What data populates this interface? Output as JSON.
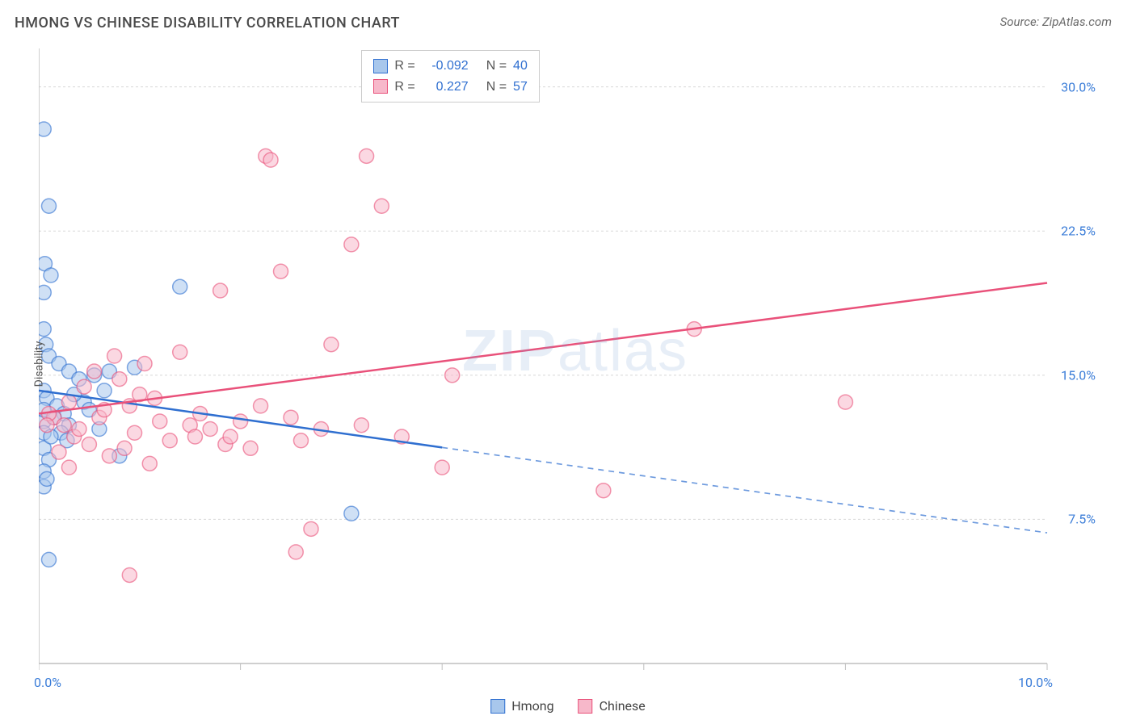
{
  "header": {
    "title": "HMONG VS CHINESE DISABILITY CORRELATION CHART",
    "source": "Source: ZipAtlas.com"
  },
  "watermark": {
    "bold": "ZIP",
    "rest": "atlas"
  },
  "chart": {
    "type": "scatter",
    "ylabel": "Disability",
    "background_color": "#ffffff",
    "grid_color": "#d8d8d8",
    "axis_color": "#bfbfbf",
    "xlim": [
      0,
      10
    ],
    "ylim": [
      0,
      32
    ],
    "x_edge_labels": {
      "min": "0.0%",
      "max": "10.0%"
    },
    "x_ticks": [
      0,
      2,
      4,
      6,
      8,
      10
    ],
    "y_ticks": [
      {
        "v": 7.5,
        "label": "7.5%"
      },
      {
        "v": 15.0,
        "label": "15.0%"
      },
      {
        "v": 22.5,
        "label": "22.5%"
      },
      {
        "v": 30.0,
        "label": "30.0%"
      }
    ],
    "marker_radius": 9,
    "marker_opacity": 0.55,
    "marker_stroke_width": 1.5,
    "line_width": 2.5,
    "series": [
      {
        "key": "hmong",
        "label": "Hmong",
        "color": "#2f6fd0",
        "fill": "#a8c7ec",
        "R": "-0.092",
        "N": "40",
        "trend": {
          "y_at_x0": 14.2,
          "y_at_x10": 6.8,
          "solid_until_x": 4.0
        },
        "points": [
          [
            0.05,
            27.8
          ],
          [
            0.1,
            23.8
          ],
          [
            0.06,
            20.8
          ],
          [
            0.12,
            20.2
          ],
          [
            0.05,
            19.3
          ],
          [
            0.05,
            17.4
          ],
          [
            0.07,
            16.6
          ],
          [
            0.1,
            16.0
          ],
          [
            0.2,
            15.6
          ],
          [
            0.3,
            15.2
          ],
          [
            0.05,
            14.2
          ],
          [
            0.08,
            13.8
          ],
          [
            0.18,
            13.4
          ],
          [
            0.25,
            13.0
          ],
          [
            0.05,
            12.6
          ],
          [
            0.4,
            14.8
          ],
          [
            0.55,
            15.0
          ],
          [
            0.65,
            14.2
          ],
          [
            0.7,
            15.2
          ],
          [
            0.05,
            12.0
          ],
          [
            0.05,
            11.2
          ],
          [
            0.1,
            10.6
          ],
          [
            0.15,
            12.8
          ],
          [
            0.3,
            12.4
          ],
          [
            0.05,
            10.0
          ],
          [
            0.6,
            12.2
          ],
          [
            0.05,
            9.2
          ],
          [
            0.1,
            5.4
          ],
          [
            0.05,
            13.2
          ],
          [
            0.45,
            13.6
          ],
          [
            0.8,
            10.8
          ],
          [
            0.95,
            15.4
          ],
          [
            1.4,
            19.6
          ],
          [
            0.35,
            14.0
          ],
          [
            0.22,
            12.0
          ],
          [
            0.5,
            13.2
          ],
          [
            0.28,
            11.6
          ],
          [
            0.12,
            11.8
          ],
          [
            0.08,
            9.6
          ],
          [
            3.1,
            7.8
          ]
        ]
      },
      {
        "key": "chinese",
        "label": "Chinese",
        "color": "#e9517a",
        "fill": "#f7b8ca",
        "R": "0.227",
        "N": "57",
        "trend": {
          "y_at_x0": 13.0,
          "y_at_x10": 19.8,
          "solid_until_x": 10.0
        },
        "points": [
          [
            0.15,
            12.8
          ],
          [
            0.25,
            12.4
          ],
          [
            0.3,
            13.6
          ],
          [
            0.35,
            11.8
          ],
          [
            0.4,
            12.2
          ],
          [
            0.45,
            14.4
          ],
          [
            0.5,
            11.4
          ],
          [
            0.55,
            15.2
          ],
          [
            0.6,
            12.8
          ],
          [
            0.65,
            13.2
          ],
          [
            0.7,
            10.8
          ],
          [
            0.75,
            16.0
          ],
          [
            0.8,
            14.8
          ],
          [
            0.85,
            11.2
          ],
          [
            0.9,
            13.4
          ],
          [
            0.95,
            12.0
          ],
          [
            1.0,
            14.0
          ],
          [
            1.05,
            15.6
          ],
          [
            1.1,
            10.4
          ],
          [
            1.15,
            13.8
          ],
          [
            1.2,
            12.6
          ],
          [
            1.3,
            11.6
          ],
          [
            1.4,
            16.2
          ],
          [
            1.5,
            12.4
          ],
          [
            1.55,
            11.8
          ],
          [
            1.6,
            13.0
          ],
          [
            1.7,
            12.2
          ],
          [
            1.8,
            19.4
          ],
          [
            1.85,
            11.4
          ],
          [
            1.9,
            11.8
          ],
          [
            2.0,
            12.6
          ],
          [
            2.1,
            11.2
          ],
          [
            2.2,
            13.4
          ],
          [
            2.25,
            26.4
          ],
          [
            2.3,
            26.2
          ],
          [
            2.4,
            20.4
          ],
          [
            2.5,
            12.8
          ],
          [
            2.55,
            5.8
          ],
          [
            2.6,
            11.6
          ],
          [
            2.7,
            7.0
          ],
          [
            2.8,
            12.2
          ],
          [
            2.9,
            16.6
          ],
          [
            3.1,
            21.8
          ],
          [
            3.2,
            12.4
          ],
          [
            3.25,
            26.4
          ],
          [
            3.4,
            23.8
          ],
          [
            3.6,
            11.8
          ],
          [
            4.0,
            10.2
          ],
          [
            4.1,
            15.0
          ],
          [
            0.9,
            4.6
          ],
          [
            0.2,
            11.0
          ],
          [
            0.1,
            13.0
          ],
          [
            5.6,
            9.0
          ],
          [
            6.5,
            17.4
          ],
          [
            8.0,
            13.6
          ],
          [
            0.3,
            10.2
          ],
          [
            0.08,
            12.4
          ]
        ]
      }
    ],
    "stats_box": {
      "value_color": "#2f6fd0",
      "label_color": "#555555"
    },
    "bottom_legend": [
      {
        "label": "Hmong",
        "fill": "#a8c7ec",
        "stroke": "#2f6fd0"
      },
      {
        "label": "Chinese",
        "fill": "#f7b8ca",
        "stroke": "#e9517a"
      }
    ]
  }
}
